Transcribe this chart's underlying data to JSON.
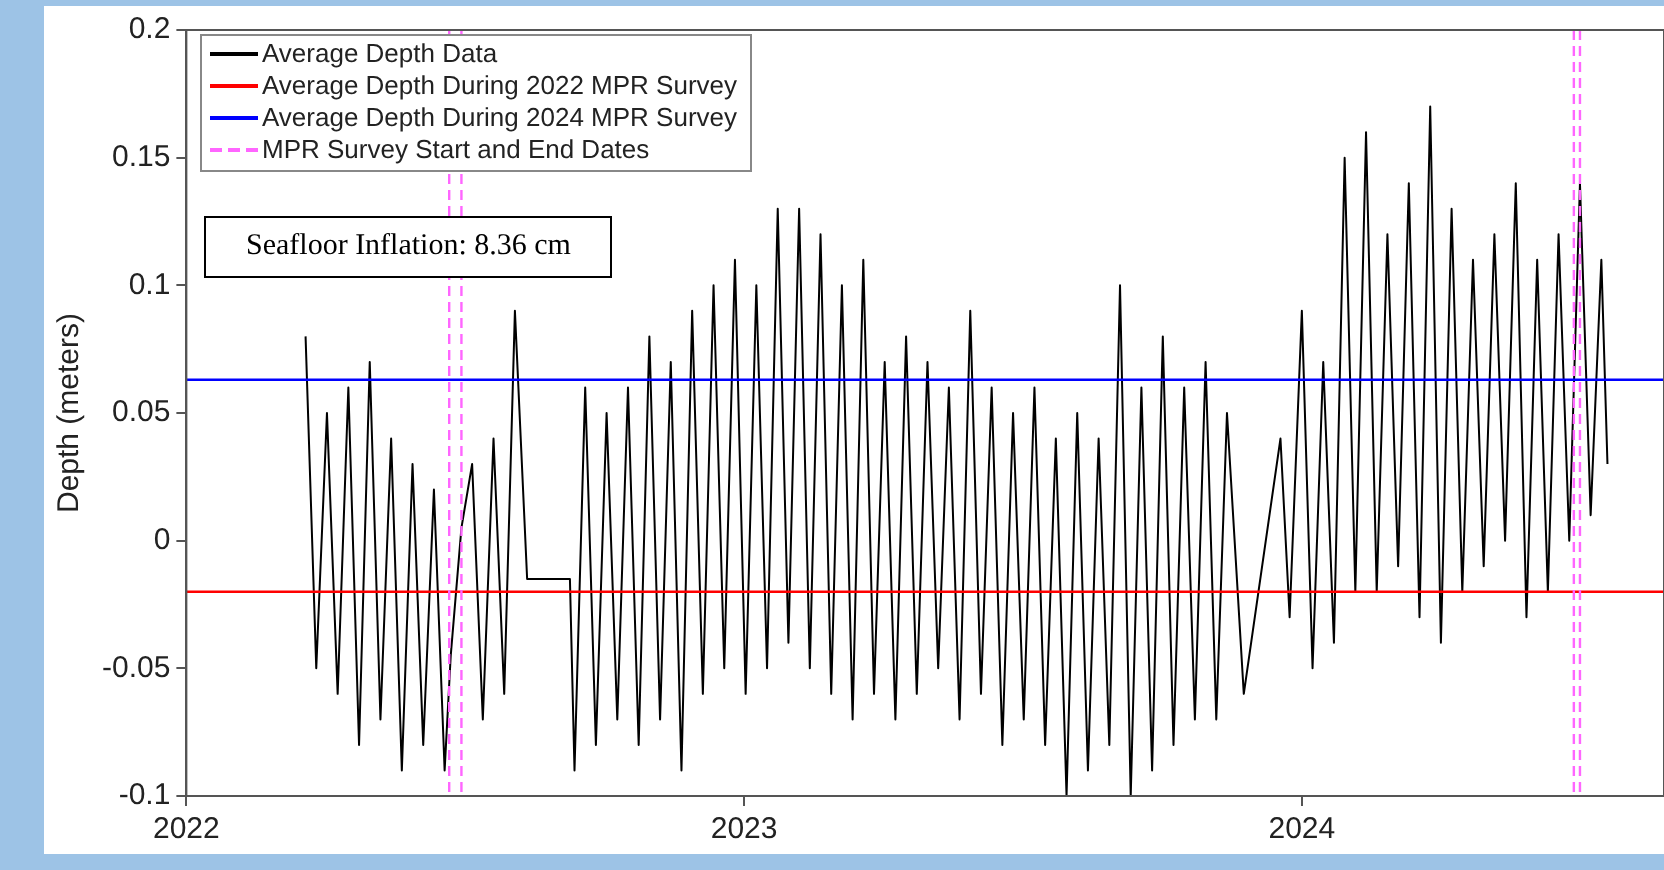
{
  "chart_data": {
    "type": "line",
    "ylabel": "Depth (meters)",
    "xlim": [
      "2022-01-01",
      "2024-08-25"
    ],
    "xticks": [
      "2022",
      "2023",
      "2024"
    ],
    "ylim": [
      -0.1,
      0.2
    ],
    "yticks": [
      -0.1,
      -0.05,
      0,
      0.05,
      0.1,
      0.15,
      0.2
    ],
    "grid": false,
    "legend": "top left",
    "marker": "none",
    "line_style": "solid",
    "annotations": [
      "Seafloor Inflation: 8.36 cm"
    ],
    "ref_lines": [
      {
        "axis": "y",
        "value": -0.02,
        "label": "Average Depth During 2022 MPR Survey",
        "color": "#ff0000",
        "line_style": "solid"
      },
      {
        "axis": "y",
        "value": 0.063,
        "label": "Average Depth During 2024 MPR Survey",
        "color": "#0000ff",
        "line_style": "solid"
      },
      {
        "axis": "x",
        "value": "2022-06-22",
        "label": "MPR Survey Start and End Dates",
        "color": "#ff66ff",
        "line_style": "dashed"
      },
      {
        "axis": "x",
        "value": "2022-06-30",
        "color": "#ff66ff",
        "line_style": "dashed"
      },
      {
        "axis": "x",
        "value": "2024-06-27",
        "color": "#ff66ff",
        "line_style": "dashed"
      },
      {
        "axis": "x",
        "value": "2024-07-01",
        "color": "#ff66ff",
        "line_style": "dashed"
      }
    ],
    "series": [
      {
        "name": "Average Depth Data",
        "color": "#000000",
        "x": [
          "2022-03-20",
          "2022-03-27",
          "2022-04-03",
          "2022-04-10",
          "2022-04-17",
          "2022-04-24",
          "2022-05-01",
          "2022-05-08",
          "2022-05-15",
          "2022-05-22",
          "2022-05-29",
          "2022-06-05",
          "2022-06-12",
          "2022-06-19",
          "2022-06-23",
          "2022-06-30",
          "2022-07-07",
          "2022-07-14",
          "2022-07-21",
          "2022-07-28",
          "2022-08-04",
          "2022-08-12",
          "2022-09-09",
          "2022-09-12",
          "2022-09-19",
          "2022-09-26",
          "2022-10-03",
          "2022-10-10",
          "2022-10-17",
          "2022-10-24",
          "2022-10-31",
          "2022-11-07",
          "2022-11-14",
          "2022-11-21",
          "2022-11-28",
          "2022-12-05",
          "2022-12-12",
          "2022-12-19",
          "2022-12-26",
          "2023-01-02",
          "2023-01-09",
          "2023-01-16",
          "2023-01-23",
          "2023-01-30",
          "2023-02-06",
          "2023-02-13",
          "2023-02-20",
          "2023-02-27",
          "2023-03-06",
          "2023-03-13",
          "2023-03-20",
          "2023-03-27",
          "2023-04-03",
          "2023-04-10",
          "2023-04-17",
          "2023-04-24",
          "2023-05-01",
          "2023-05-08",
          "2023-05-15",
          "2023-05-22",
          "2023-05-29",
          "2023-06-05",
          "2023-06-12",
          "2023-06-19",
          "2023-06-26",
          "2023-07-03",
          "2023-07-10",
          "2023-07-17",
          "2023-07-24",
          "2023-07-31",
          "2023-08-07",
          "2023-08-14",
          "2023-08-21",
          "2023-08-28",
          "2023-09-04",
          "2023-09-11",
          "2023-09-18",
          "2023-09-25",
          "2023-10-02",
          "2023-10-09",
          "2023-10-16",
          "2023-10-23",
          "2023-10-30",
          "2023-11-06",
          "2023-11-13",
          "2023-11-24",
          "2023-12-18",
          "2023-12-24",
          "2024-01-01",
          "2024-01-08",
          "2024-01-15",
          "2024-01-22",
          "2024-01-29",
          "2024-02-05",
          "2024-02-12",
          "2024-02-19",
          "2024-02-26",
          "2024-03-04",
          "2024-03-11",
          "2024-03-18",
          "2024-03-25",
          "2024-04-01",
          "2024-04-08",
          "2024-04-15",
          "2024-04-22",
          "2024-04-29",
          "2024-05-06",
          "2024-05-13",
          "2024-05-20",
          "2024-05-27",
          "2024-06-03",
          "2024-06-10",
          "2024-06-17",
          "2024-06-24",
          "2024-07-01",
          "2024-07-08",
          "2024-07-15",
          "2024-07-19"
        ],
        "values": [
          0.08,
          -0.05,
          0.05,
          -0.06,
          0.06,
          -0.08,
          0.07,
          -0.07,
          0.04,
          -0.09,
          0.03,
          -0.08,
          0.02,
          -0.09,
          -0.045,
          0.005,
          0.03,
          -0.07,
          0.04,
          -0.06,
          0.09,
          -0.015,
          -0.015,
          -0.09,
          0.06,
          -0.08,
          0.05,
          -0.07,
          0.06,
          -0.08,
          0.08,
          -0.07,
          0.07,
          -0.09,
          0.09,
          -0.06,
          0.1,
          -0.05,
          0.11,
          -0.06,
          0.1,
          -0.05,
          0.13,
          -0.04,
          0.13,
          -0.05,
          0.12,
          -0.06,
          0.1,
          -0.07,
          0.11,
          -0.06,
          0.07,
          -0.07,
          0.08,
          -0.06,
          0.07,
          -0.05,
          0.06,
          -0.07,
          0.09,
          -0.06,
          0.06,
          -0.08,
          0.05,
          -0.07,
          0.06,
          -0.08,
          0.04,
          -0.1,
          0.05,
          -0.09,
          0.04,
          -0.08,
          0.1,
          -0.1,
          0.06,
          -0.09,
          0.08,
          -0.08,
          0.06,
          -0.07,
          0.07,
          -0.07,
          0.05,
          -0.06,
          0.04,
          -0.03,
          0.09,
          -0.05,
          0.07,
          -0.04,
          0.15,
          -0.02,
          0.16,
          -0.02,
          0.12,
          -0.01,
          0.14,
          -0.03,
          0.17,
          -0.04,
          0.13,
          -0.02,
          0.11,
          -0.01,
          0.12,
          0,
          0.14,
          -0.03,
          0.11,
          -0.02,
          0.12,
          0,
          0.14,
          0.01,
          0.11,
          0.03
        ]
      }
    ]
  }
}
